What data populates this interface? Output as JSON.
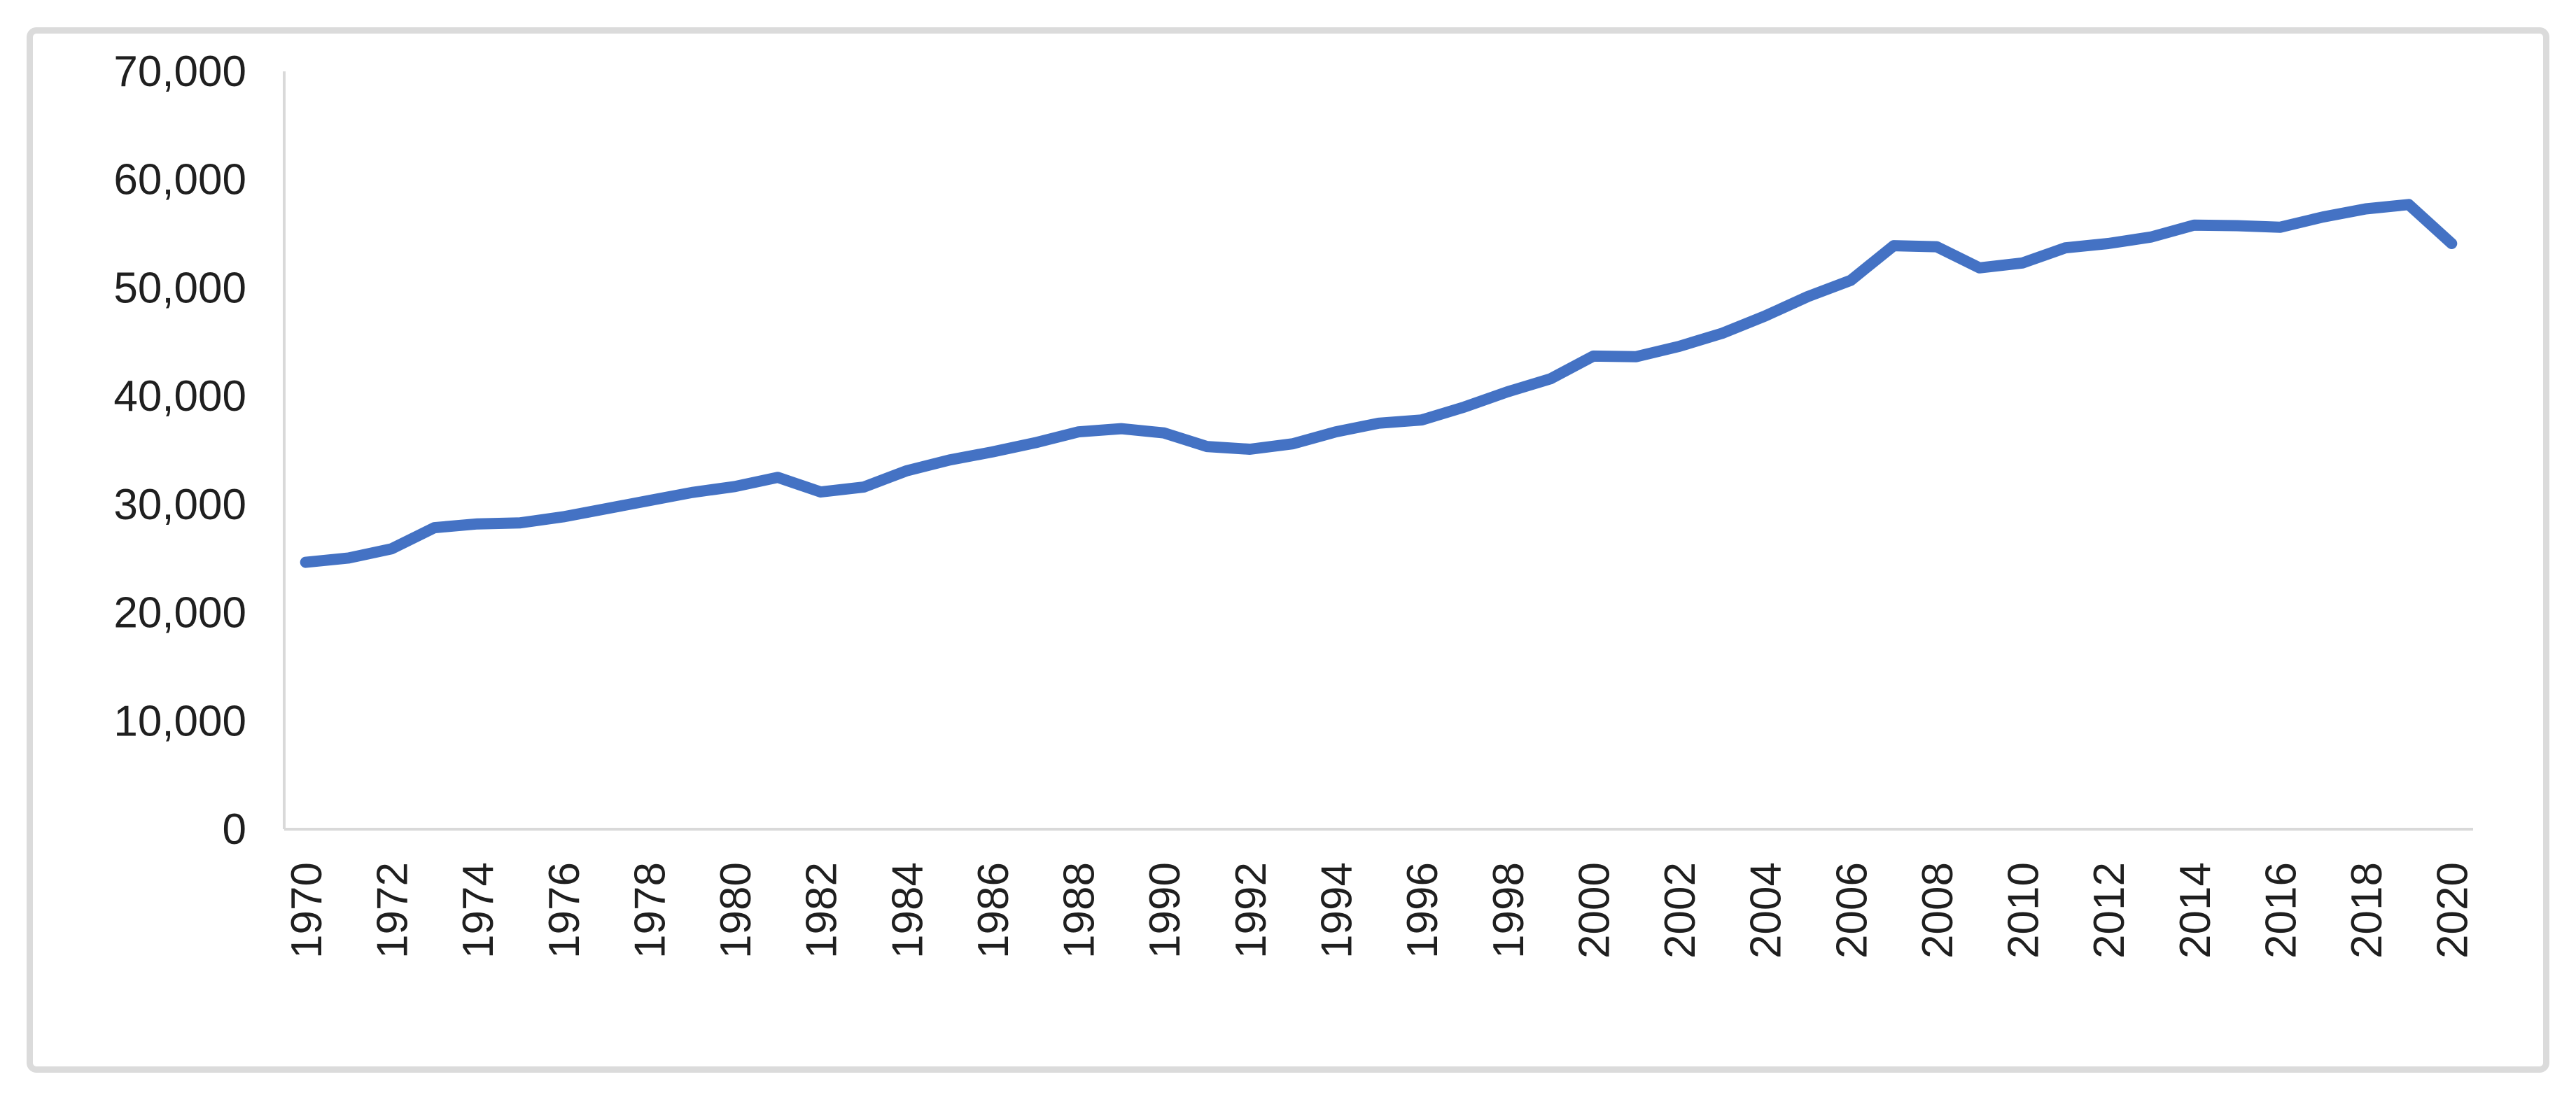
{
  "chart_data": {
    "type": "line",
    "title": "",
    "xlabel": "",
    "ylabel": "",
    "grid": false,
    "legend": false,
    "x_range": [
      1970,
      2020
    ],
    "ylim": [
      0,
      70000
    ],
    "ytick_step": 10000,
    "xtick_interval": 2,
    "y_tick_labels": [
      "0",
      "10,000",
      "20,000",
      "30,000",
      "40,000",
      "50,000",
      "60,000",
      "70,000"
    ],
    "x_tick_labels": [
      "1970",
      "1972",
      "1974",
      "1976",
      "1978",
      "1980",
      "1982",
      "1984",
      "1986",
      "1988",
      "1990",
      "1992",
      "1994",
      "1996",
      "1998",
      "2000",
      "2002",
      "2004",
      "2006",
      "2008",
      "2010",
      "2012",
      "2014",
      "2016",
      "2018",
      "2020"
    ],
    "x": [
      1970,
      1971,
      1972,
      1973,
      1974,
      1975,
      1976,
      1977,
      1978,
      1979,
      1980,
      1981,
      1982,
      1983,
      1984,
      1985,
      1986,
      1987,
      1988,
      1989,
      1990,
      1991,
      1992,
      1993,
      1994,
      1995,
      1996,
      1997,
      1998,
      1999,
      2000,
      2001,
      2002,
      2003,
      2004,
      2005,
      2006,
      2007,
      2008,
      2009,
      2010,
      2011,
      2012,
      2013,
      2014,
      2015,
      2016,
      2017,
      2018,
      2019,
      2020
    ],
    "values": [
      24650,
      25050,
      25900,
      27850,
      28200,
      28300,
      28850,
      29600,
      30350,
      31100,
      31650,
      32500,
      31150,
      31600,
      33100,
      34100,
      34850,
      35700,
      36700,
      37000,
      36600,
      35350,
      35100,
      35600,
      36700,
      37500,
      37800,
      39000,
      40400,
      41600,
      43700,
      43650,
      44600,
      45800,
      47400,
      49200,
      50700,
      53900,
      53800,
      51850,
      52300,
      53700,
      54100,
      54700,
      55800,
      55750,
      55600,
      56550,
      57300,
      57700,
      54100
    ],
    "colors": {
      "series_line": "#4472C4",
      "axis_line": "#d9d9d9",
      "tick_label": "#1f1f1f",
      "chart_border": "#dbdbdb",
      "background": "#ffffff"
    }
  }
}
